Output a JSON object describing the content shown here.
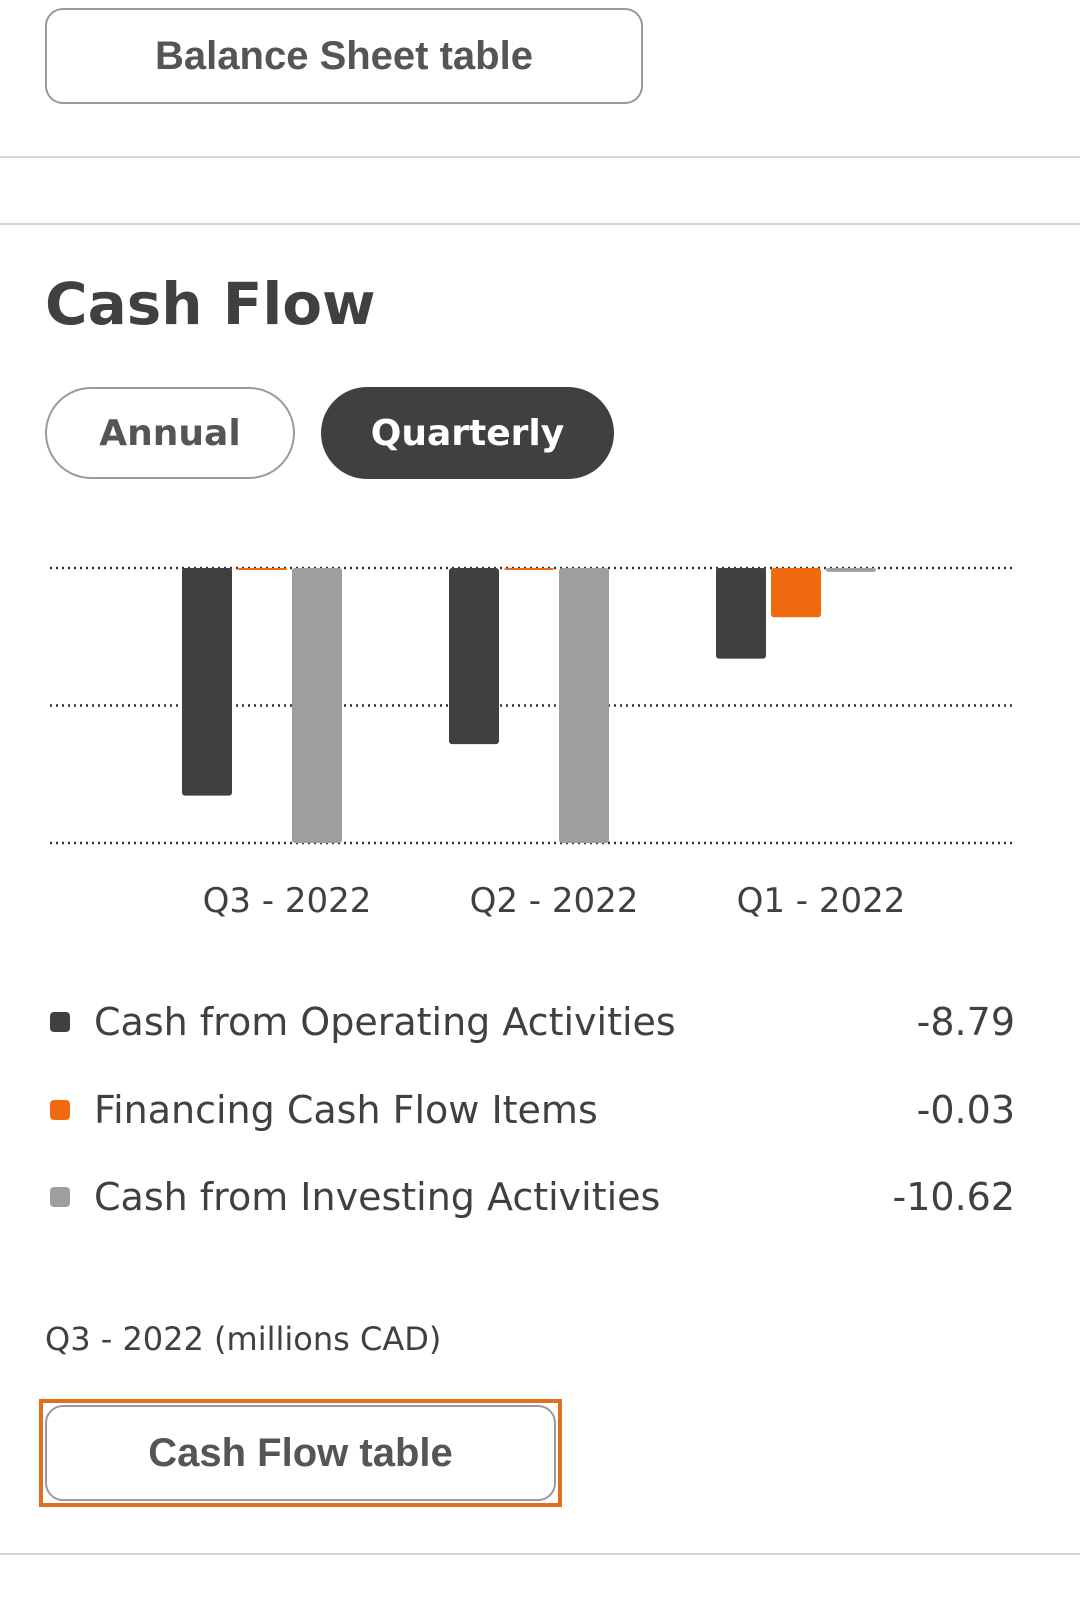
{
  "balance_sheet_button": {
    "label": "Balance Sheet table"
  },
  "section": {
    "title": "Cash Flow"
  },
  "toggle": {
    "annual": "Annual",
    "quarterly": "Quarterly",
    "selected": "Quarterly"
  },
  "colors": {
    "operating": "#404040",
    "financing": "#f26a10",
    "investing": "#9e9e9e",
    "focus": "#e07020"
  },
  "chart_data": {
    "type": "bar",
    "categories": [
      "Q3 - 2022",
      "Q2 - 2022",
      "Q1 - 2022"
    ],
    "series": [
      {
        "name": "Cash from Operating Activities",
        "values": [
          -8.79,
          -6.8,
          -3.5
        ]
      },
      {
        "name": "Financing Cash Flow Items",
        "values": [
          -0.03,
          -0.02,
          -1.9
        ]
      },
      {
        "name": "Cash from Investing Activities",
        "values": [
          -10.62,
          -10.62,
          -0.15
        ]
      }
    ],
    "ylim": [
      -10.62,
      0
    ],
    "grid": true,
    "gridlines": 3
  },
  "legend": [
    {
      "label": "Cash from Operating Activities",
      "value": "-8.79"
    },
    {
      "label": "Financing Cash Flow Items",
      "value": "-0.03"
    },
    {
      "label": "Cash from Investing Activities",
      "value": "-10.62"
    }
  ],
  "period_note": "Q3 - 2022 (millions CAD)",
  "cash_flow_button": {
    "label": "Cash Flow table"
  }
}
